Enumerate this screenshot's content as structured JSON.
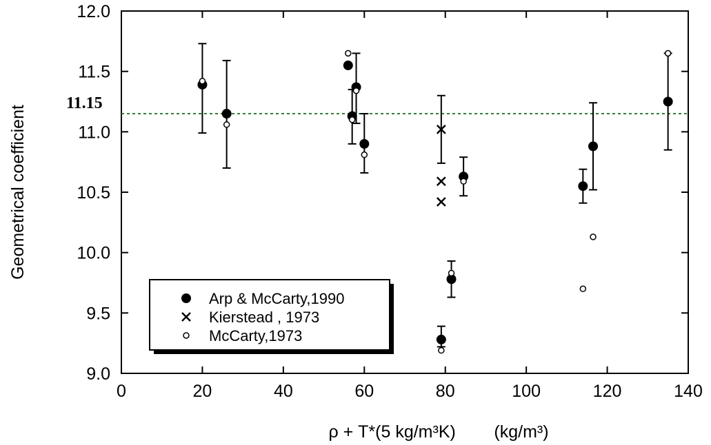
{
  "chart_data": {
    "type": "scatter",
    "title": "",
    "xlabel": "ρ + T*(5 kg/m³K)        (kg/m³)",
    "ylabel": "Geometrical coefficient",
    "xlim": [
      0,
      140
    ],
    "ylim": [
      9.0,
      12.0
    ],
    "x_ticks": [
      "0",
      "20",
      "40",
      "60",
      "80",
      "100",
      "120",
      "140"
    ],
    "y_ticks": [
      "9.0",
      "9.5",
      "10.0",
      "10.5",
      "11.0",
      "11.5",
      "12.0"
    ],
    "grid": false,
    "reference_line": {
      "y": 11.15,
      "label": "11.15",
      "style": "dashed",
      "color": "#2e7d32"
    },
    "legend": {
      "position": "lower-left"
    },
    "series": [
      {
        "name": "Arp & McCarty,1990",
        "marker": "filled-circle",
        "x": [
          20,
          26,
          56,
          57,
          58,
          60,
          84.5,
          79,
          81.5,
          114,
          116.5,
          135
        ],
        "y": [
          11.39,
          11.15,
          11.55,
          11.13,
          11.37,
          10.9,
          10.63,
          9.28,
          9.78,
          10.55,
          10.88,
          11.25
        ],
        "err_low": [
          10.99,
          10.7,
          11.55,
          10.9,
          11.07,
          10.66,
          10.47,
          9.22,
          9.63,
          10.41,
          10.52,
          10.85
        ],
        "err_high": [
          11.73,
          11.59,
          11.55,
          11.35,
          11.65,
          11.15,
          10.79,
          9.39,
          9.93,
          10.69,
          11.24,
          11.65
        ]
      },
      {
        "name": "Kierstead , 1973",
        "marker": "cross",
        "x": [
          79,
          79,
          79
        ],
        "y": [
          11.02,
          10.59,
          10.42
        ],
        "err_low": [
          10.74,
          null,
          null
        ],
        "err_high": [
          11.3,
          null,
          null
        ]
      },
      {
        "name": "McCarty,1973",
        "marker": "open-circle",
        "x": [
          20,
          26,
          56,
          57,
          58,
          60,
          84.5,
          79,
          81.5,
          114,
          116.5,
          135
        ],
        "y": [
          11.42,
          11.06,
          11.65,
          11.1,
          11.34,
          10.81,
          10.59,
          9.19,
          9.83,
          9.7,
          10.13,
          11.65
        ]
      }
    ]
  }
}
